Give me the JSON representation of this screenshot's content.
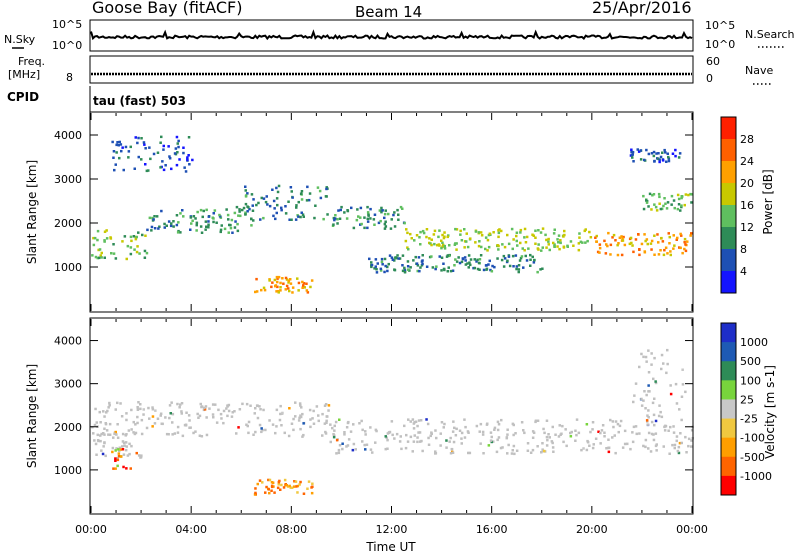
{
  "header": {
    "title": "Goose Bay (fitACF)",
    "beam": "Beam 14",
    "date": "25/Apr/2016"
  },
  "noise_panel": {
    "left_label": "N.Sky",
    "left_ticks": [
      "10^5",
      "10^0"
    ],
    "right_ticks": [
      "10^5",
      "10^0"
    ],
    "right_label": "N.Search"
  },
  "freq_panel": {
    "left_label_line1": "Freq.",
    "left_label_line2": "[MHz]",
    "left_tick": "8",
    "right_ticks": [
      "60",
      "0"
    ],
    "right_label": "Nave"
  },
  "cpid_panel": {
    "left_label": "CPID",
    "text": "tau (fast) 503"
  },
  "colors": {
    "trace": "#000000",
    "power_scale": [
      "#1414ff",
      "#1e50b4",
      "#2e8b57",
      "#5fbf5f",
      "#c8c800",
      "#ffa000",
      "#ff6000",
      "#ff2000"
    ],
    "velocity_scale": [
      "#ff0000",
      "#ff6400",
      "#ff9e00",
      "#f0c840",
      "#c8c8c8",
      "#78d43c",
      "#2e8b57",
      "#1e5ab4",
      "#1e2ec8"
    ],
    "ground_scatter": "#c0c0c0"
  },
  "chart_data": [
    {
      "type": "heatmap",
      "panel": "power",
      "ylabel": "Slant Range [km]",
      "yticks": [
        "1000",
        "2000",
        "3000",
        "4000"
      ],
      "ylim": [
        0,
        4500
      ],
      "colorbar_label": "Power [dB]",
      "colorbar_ticks": [
        "28",
        "24",
        "20",
        "16",
        "12",
        "8",
        "4"
      ],
      "colorbar_range": [
        0,
        32
      ],
      "regions": [
        {
          "x0": 0.0,
          "x1": 2.2,
          "r0": 1200,
          "r1": 1900,
          "level": 14
        },
        {
          "x0": 2.2,
          "x1": 6.5,
          "r0": 1800,
          "r1": 2400,
          "level": 10
        },
        {
          "x0": 6.0,
          "x1": 9.5,
          "r0": 2100,
          "r1": 2900,
          "level": 9
        },
        {
          "x0": 9.5,
          "x1": 12.5,
          "r0": 1900,
          "r1": 2400,
          "level": 10
        },
        {
          "x0": 12.5,
          "x1": 20.0,
          "r0": 1400,
          "r1": 1900,
          "level": 16
        },
        {
          "x0": 20.0,
          "x1": 24.0,
          "r0": 1300,
          "r1": 1800,
          "level": 22
        },
        {
          "x0": 11.0,
          "x1": 18.0,
          "r0": 900,
          "r1": 1300,
          "level": 9
        },
        {
          "x0": 6.5,
          "x1": 8.8,
          "r0": 450,
          "r1": 800,
          "level": 22
        },
        {
          "x0": 0.8,
          "x1": 4.0,
          "r0": 3200,
          "r1": 4000,
          "level": 6
        },
        {
          "x0": 21.5,
          "x1": 23.5,
          "r0": 3400,
          "r1": 3700,
          "level": 6
        },
        {
          "x0": 22.0,
          "x1": 24.0,
          "r0": 2300,
          "r1": 2700,
          "level": 14
        }
      ]
    },
    {
      "type": "heatmap",
      "panel": "velocity",
      "ylabel": "Slant Range [km]",
      "yticks": [
        "1000",
        "2000",
        "3000",
        "4000"
      ],
      "ylim": [
        0,
        4500
      ],
      "xlabel": "Time UT",
      "xticks": [
        "00:00",
        "04:00",
        "08:00",
        "12:00",
        "16:00",
        "20:00",
        "00:00"
      ],
      "xlim": [
        0,
        24
      ],
      "colorbar_label": "Velocity [m s-1]",
      "colorbar_ticks": [
        "1000",
        "500",
        "100",
        "25",
        "-25",
        "-100",
        "-500",
        "-1000"
      ],
      "regions": [
        {
          "x0": 0.0,
          "x1": 9.5,
          "r0": 1800,
          "r1": 2600,
          "vclass": "gs"
        },
        {
          "x0": 0.0,
          "x1": 2.0,
          "r0": 1300,
          "r1": 1900,
          "vclass": "gs"
        },
        {
          "x0": 9.5,
          "x1": 24.0,
          "r0": 1400,
          "r1": 2200,
          "vclass": "gs"
        },
        {
          "x0": 0.8,
          "x1": 1.6,
          "r0": 1000,
          "r1": 1600,
          "vclass": "neg_mid"
        },
        {
          "x0": 6.5,
          "x1": 8.8,
          "r0": 450,
          "r1": 800,
          "vclass": "neg_low"
        },
        {
          "x0": 21.5,
          "x1": 23.8,
          "r0": 2200,
          "r1": 3900,
          "vclass": "gs"
        }
      ]
    }
  ]
}
